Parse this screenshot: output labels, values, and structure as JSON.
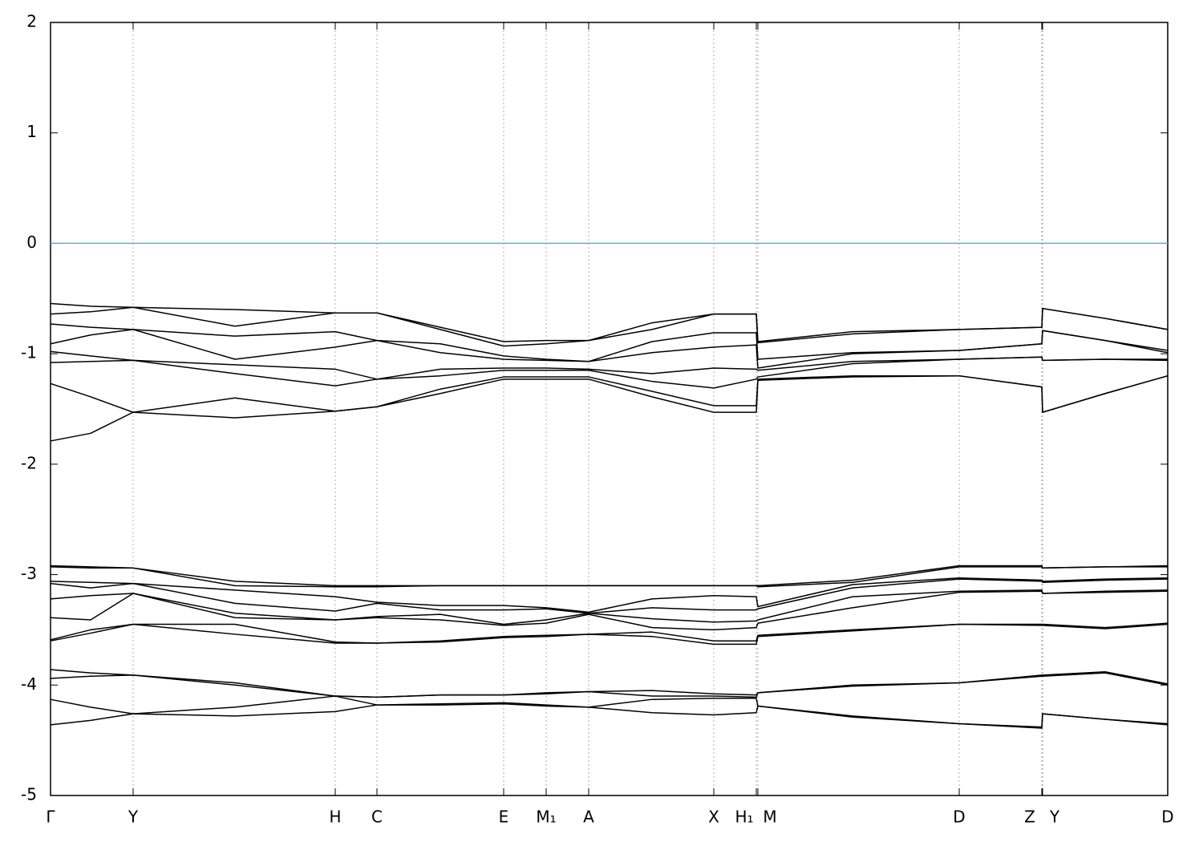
{
  "chart_data": {
    "type": "line",
    "color": "#000000",
    "grid": true,
    "reference_line": {
      "value": 0,
      "color": "#5ab4c8"
    },
    "xlim": [
      0,
      13.93
    ],
    "ylim": [
      -5,
      2
    ],
    "yticks": [
      -5,
      -4,
      -3,
      -2,
      -1,
      0,
      1,
      2
    ],
    "xticks": [
      {
        "value": 0,
        "label": "Γ"
      },
      {
        "value": 1.03,
        "label": "Y"
      },
      {
        "value": 3.55,
        "label": "H"
      },
      {
        "value": 4.07,
        "label": "C"
      },
      {
        "value": 5.65,
        "label": "E"
      },
      {
        "value": 6.18,
        "label": "M₁"
      },
      {
        "value": 6.71,
        "label": "A"
      },
      {
        "value": 8.27,
        "label": "X"
      },
      {
        "value": 8.8,
        "label": "H₁"
      },
      {
        "value": 8.82,
        "label": "M"
      },
      {
        "value": 11.33,
        "label": "D"
      },
      {
        "value": 12.36,
        "label": "Z"
      },
      {
        "value": 12.37,
        "label": "Y"
      },
      {
        "value": 13.93,
        "label": "D"
      }
    ],
    "x": [
      0,
      0.5,
      1.03,
      2.3,
      3.55,
      4.07,
      4.86,
      5.65,
      6.18,
      6.71,
      7.5,
      8.27,
      8.8,
      8.82,
      10.0,
      11.33,
      12.36,
      12.37,
      13.15,
      13.93
    ],
    "series": [
      {
        "values": [
          -0.545,
          -0.57,
          -0.58,
          -0.6,
          -0.63,
          -0.63,
          -0.76,
          -0.89,
          -0.88,
          -0.88,
          -0.72,
          -0.64,
          -0.64,
          -0.89,
          -0.8,
          -0.78,
          -0.76,
          -0.59,
          -0.68,
          -0.78
        ]
      },
      {
        "values": [
          -0.64,
          -0.62,
          -0.58,
          -0.75,
          -0.63,
          -0.63,
          -0.78,
          -0.93,
          -0.91,
          -0.88,
          -0.78,
          -0.64,
          -0.64,
          -0.9,
          -0.82,
          -0.78,
          -0.76,
          -0.59,
          -0.68,
          -0.78
        ]
      },
      {
        "values": [
          -0.73,
          -0.76,
          -0.78,
          -0.84,
          -0.8,
          -0.88,
          -0.91,
          -1.02,
          -1.05,
          -1.07,
          -0.89,
          -0.81,
          -0.81,
          -1.05,
          -0.99,
          -0.97,
          -0.91,
          -0.79,
          -0.88,
          -0.97
        ]
      },
      {
        "values": [
          -0.91,
          -0.83,
          -0.78,
          -1.05,
          -0.94,
          -0.88,
          -0.99,
          -1.05,
          -1.06,
          -1.07,
          -0.99,
          -0.94,
          -0.92,
          -1.13,
          -1.0,
          -0.97,
          -0.91,
          -0.79,
          -0.88,
          -0.99
        ]
      },
      {
        "values": [
          -0.98,
          -1.02,
          -1.06,
          -1.1,
          -1.14,
          -1.23,
          -1.14,
          -1.13,
          -1.13,
          -1.14,
          -1.18,
          -1.13,
          -1.14,
          -1.15,
          -1.07,
          -1.05,
          -1.03,
          -1.06,
          -1.05,
          -1.05
        ]
      },
      {
        "values": [
          -1.08,
          -1.07,
          -1.06,
          -1.18,
          -1.29,
          -1.23,
          -1.2,
          -1.15,
          -1.15,
          -1.15,
          -1.25,
          -1.31,
          -1.23,
          -1.21,
          -1.09,
          -1.05,
          -1.03,
          -1.06,
          -1.05,
          -1.06
        ]
      },
      {
        "values": [
          -1.27,
          -1.39,
          -1.53,
          -1.4,
          -1.52,
          -1.48,
          -1.32,
          -1.21,
          -1.21,
          -1.21,
          -1.34,
          -1.47,
          -1.47,
          -1.23,
          -1.2,
          -1.2,
          -1.3,
          -1.53,
          -1.36,
          -1.2
        ]
      },
      {
        "values": [
          -1.79,
          -1.72,
          -1.53,
          -1.58,
          -1.52,
          -1.48,
          -1.36,
          -1.23,
          -1.23,
          -1.23,
          -1.39,
          -1.53,
          -1.53,
          -1.24,
          -1.21,
          -1.2,
          -1.3,
          -1.53,
          -1.36,
          -1.2
        ]
      },
      {
        "values": [
          -2.92,
          -2.93,
          -2.94,
          -3.06,
          -3.1,
          -3.1,
          -3.1,
          -3.1,
          -3.1,
          -3.1,
          -3.1,
          -3.1,
          -3.1,
          -3.1,
          -3.05,
          -2.92,
          -2.92,
          -2.94,
          -2.93,
          -2.92
        ]
      },
      {
        "values": [
          -2.93,
          -2.94,
          -2.94,
          -3.1,
          -3.11,
          -3.11,
          -3.1,
          -3.1,
          -3.1,
          -3.1,
          -3.1,
          -3.1,
          -3.1,
          -3.11,
          -3.07,
          -2.93,
          -2.93,
          -2.94,
          -2.93,
          -2.93
        ]
      },
      {
        "values": [
          -3.06,
          -3.07,
          -3.08,
          -3.14,
          -3.2,
          -3.25,
          -3.28,
          -3.28,
          -3.3,
          -3.34,
          -3.22,
          -3.19,
          -3.2,
          -3.29,
          -3.09,
          -3.03,
          -3.05,
          -3.06,
          -3.04,
          -3.03
        ]
      },
      {
        "values": [
          -3.08,
          -3.12,
          -3.08,
          -3.26,
          -3.33,
          -3.26,
          -3.32,
          -3.32,
          -3.31,
          -3.35,
          -3.3,
          -3.32,
          -3.32,
          -3.31,
          -3.12,
          -3.04,
          -3.06,
          -3.07,
          -3.05,
          -3.04
        ]
      },
      {
        "values": [
          -3.22,
          -3.19,
          -3.17,
          -3.35,
          -3.41,
          -3.38,
          -3.36,
          -3.45,
          -3.41,
          -3.35,
          -3.4,
          -3.43,
          -3.42,
          -3.41,
          -3.2,
          -3.15,
          -3.14,
          -3.17,
          -3.15,
          -3.14
        ]
      },
      {
        "values": [
          -3.39,
          -3.41,
          -3.17,
          -3.39,
          -3.41,
          -3.39,
          -3.41,
          -3.46,
          -3.44,
          -3.36,
          -3.48,
          -3.5,
          -3.48,
          -3.44,
          -3.3,
          -3.16,
          -3.15,
          -3.17,
          -3.16,
          -3.15
        ]
      },
      {
        "values": [
          -3.59,
          -3.5,
          -3.45,
          -3.45,
          -3.61,
          -3.62,
          -3.6,
          -3.56,
          -3.55,
          -3.54,
          -3.52,
          -3.6,
          -3.6,
          -3.55,
          -3.5,
          -3.45,
          -3.45,
          -3.45,
          -3.48,
          -3.44
        ]
      },
      {
        "values": [
          -3.6,
          -3.53,
          -3.45,
          -3.54,
          -3.62,
          -3.62,
          -3.61,
          -3.57,
          -3.56,
          -3.54,
          -3.56,
          -3.63,
          -3.63,
          -3.56,
          -3.51,
          -3.45,
          -3.46,
          -3.46,
          -3.49,
          -3.45
        ]
      },
      {
        "values": [
          -3.86,
          -3.89,
          -3.91,
          -3.98,
          -4.1,
          -4.11,
          -4.09,
          -4.09,
          -4.07,
          -4.06,
          -4.05,
          -4.08,
          -4.09,
          -4.07,
          -4.0,
          -3.98,
          -3.91,
          -3.91,
          -3.88,
          -3.99
        ]
      },
      {
        "values": [
          -3.94,
          -3.92,
          -3.91,
          -4.0,
          -4.1,
          -4.11,
          -4.09,
          -4.09,
          -4.08,
          -4.06,
          -4.1,
          -4.1,
          -4.11,
          -4.07,
          -4.01,
          -3.98,
          -3.92,
          -3.92,
          -3.89,
          -4.0
        ]
      },
      {
        "values": [
          -4.13,
          -4.2,
          -4.26,
          -4.2,
          -4.1,
          -4.18,
          -4.17,
          -4.16,
          -4.18,
          -4.2,
          -4.13,
          -4.12,
          -4.12,
          -4.19,
          -4.28,
          -4.35,
          -4.38,
          -4.26,
          -4.31,
          -4.35
        ]
      },
      {
        "values": [
          -4.36,
          -4.32,
          -4.26,
          -4.28,
          -4.24,
          -4.18,
          -4.18,
          -4.17,
          -4.19,
          -4.2,
          -4.25,
          -4.27,
          -4.25,
          -4.19,
          -4.29,
          -4.35,
          -4.39,
          -4.26,
          -4.31,
          -4.36
        ]
      }
    ]
  }
}
